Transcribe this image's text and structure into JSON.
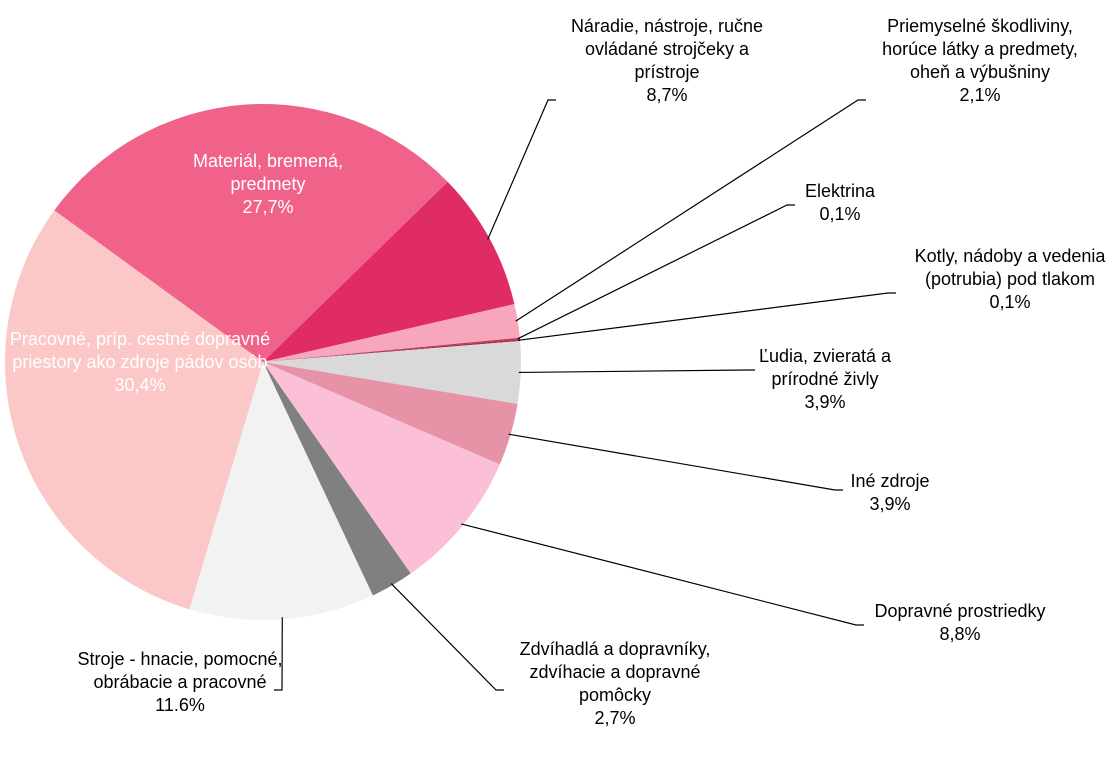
{
  "chart_data": {
    "type": "pie",
    "categories": [
      "Materiál, bremená, predmety",
      "Náradie, nástroje, ručne ovládané strojčeky a prístroje",
      "Priemyselné škodliviny, horúce látky a predmety, oheň a výbušniny",
      "Elektrina",
      "Kotly, nádoby a vedenia (potrubia) pod tlakom",
      "Ľudia, zvieratá a prírodné živly",
      "Iné zdroje",
      "Dopravné prostriedky",
      "Zdvíhadlá a dopravníky, zdvíhacie a dopravné pomôcky",
      "Stroje - hnacie, pomocné, obrábacie a pracovné",
      "Pracovné, príp. cestné dopravné priestory ako zdroje pádov osôb"
    ],
    "values": [
      27.7,
      8.7,
      2.1,
      0.1,
      0.1,
      3.9,
      3.9,
      8.8,
      2.7,
      11.6,
      30.4
    ],
    "value_labels": [
      "27,7%",
      "8,7%",
      "2,1%",
      "0,1%",
      "0,1%",
      "3,9%",
      "3,9%",
      "8,8%",
      "2,7%",
      "11.6%",
      "30,4%"
    ],
    "colors": [
      "#f0628a",
      "#e02c65",
      "#f7a6bb",
      "#c0365a",
      "#9b3050",
      "#d9d9d9",
      "#e693a8",
      "#fbbfd7",
      "#808080",
      "#f2f2f2",
      "#fcc7c7"
    ]
  }
}
